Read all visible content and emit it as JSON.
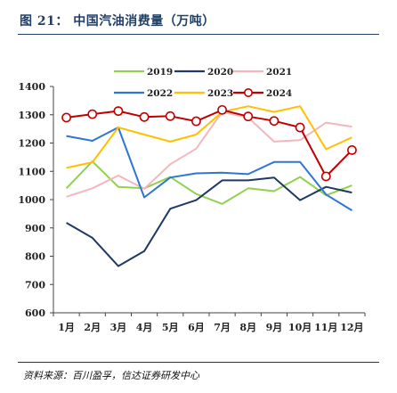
{
  "header": {
    "title": "图 21：  中国汽油消费量（万吨）"
  },
  "footer": {
    "source": "资料来源：百川盈孚，信达证券研发中心"
  },
  "chart_data": {
    "type": "line",
    "title": "",
    "xlabel": "",
    "ylabel": "",
    "categories": [
      "1月",
      "2月",
      "3月",
      "4月",
      "5月",
      "6月",
      "7月",
      "8月",
      "9月",
      "10月",
      "11月",
      "12月"
    ],
    "ylim": [
      600,
      1400
    ],
    "yticks": [
      600,
      700,
      800,
      900,
      1000,
      1100,
      1200,
      1300,
      1400
    ],
    "grid": false,
    "legend_position": "top",
    "series": [
      {
        "name": "2019",
        "color": "#92d050",
        "marker": "none",
        "values": [
          1040,
          1135,
          1045,
          1040,
          1080,
          1020,
          985,
          1040,
          1030,
          1080,
          1015,
          1050
        ]
      },
      {
        "name": "2020",
        "color": "#203864",
        "marker": "none",
        "values": [
          918,
          865,
          765,
          818,
          968,
          998,
          1068,
          1068,
          1078,
          998,
          1045,
          1025
        ]
      },
      {
        "name": "2021",
        "color": "#f4b6bc",
        "marker": "none",
        "values": [
          1010,
          1040,
          1085,
          1038,
          1125,
          1180,
          1310,
          1290,
          1205,
          1210,
          1272,
          1258
        ]
      },
      {
        "name": "2022",
        "color": "#2e75d6",
        "marker": "none",
        "values": [
          1225,
          1208,
          1255,
          1008,
          1078,
          1093,
          1095,
          1090,
          1133,
          1133,
          1018,
          962
        ]
      },
      {
        "name": "2023",
        "color": "#ffc000",
        "marker": "none",
        "values": [
          1112,
          1132,
          1255,
          1230,
          1205,
          1230,
          1310,
          1330,
          1310,
          1330,
          1178,
          1220
        ]
      },
      {
        "name": "2024",
        "color": "#c00000",
        "marker": "open-circle",
        "values": [
          1290,
          1302,
          1313,
          1292,
          1295,
          1277,
          1317,
          1294,
          1278,
          1255,
          1082,
          1175
        ]
      }
    ]
  }
}
